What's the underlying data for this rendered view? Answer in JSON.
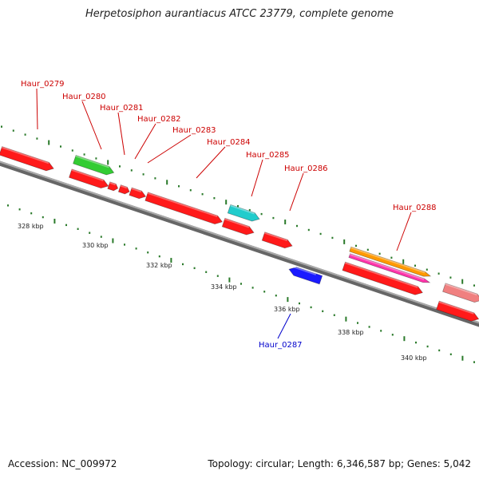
{
  "title": "Herpetosiphon aurantiacus ATCC 23779, complete genome",
  "footer": {
    "accession": "Accession: NC_009972",
    "summary": "Topology: circular; Length: 6,346,587 bp; Genes: 5,042"
  },
  "colors": {
    "backbone": "#888888",
    "tick": "#2a7a2a",
    "label_red": "#cc0000",
    "label_blue": "#0000cc"
  },
  "scale_labels": [
    "328 kbp",
    "330 kbp",
    "332 kbp",
    "334 kbp",
    "336 kbp",
    "338 kbp",
    "340 kbp"
  ],
  "genes": [
    {
      "label": "Haur_0279",
      "color": "#ff1a1a",
      "strand": "+",
      "labeled": true
    },
    {
      "label": "Haur_0280",
      "color": "#33cc33",
      "strand": "+",
      "labeled": true
    },
    {
      "label": "",
      "color": "#ff1a1a",
      "strand": "+",
      "labeled": false
    },
    {
      "label": "Haur_0281",
      "color": "#ff1a1a",
      "strand": "+",
      "labeled": true
    },
    {
      "label": "Haur_0282",
      "color": "#ff1a1a",
      "strand": "+",
      "labeled": true
    },
    {
      "label": "Haur_0283",
      "color": "#ff1a1a",
      "strand": "+",
      "labeled": true
    },
    {
      "label": "Haur_0284",
      "color": "#ff1a1a",
      "strand": "+",
      "labeled": true
    },
    {
      "label": "Haur_0285",
      "color": "#22cccc",
      "strand": "+",
      "labeled": true
    },
    {
      "label": "",
      "color": "#ff1a1a",
      "strand": "+",
      "labeled": false
    },
    {
      "label": "Haur_0286",
      "color": "#ff1a1a",
      "strand": "+",
      "labeled": true
    },
    {
      "label": "Haur_0287",
      "color": "#1a1aff",
      "strand": "-",
      "labeled": true
    },
    {
      "label": "",
      "color": "#ff1a1a",
      "strand": "+",
      "labeled": false
    },
    {
      "label": "",
      "color": "#ff33aa",
      "strand": "+",
      "labeled": false
    },
    {
      "label": "Haur_0288",
      "color": "#ff9900",
      "strand": "+",
      "labeled": true
    },
    {
      "label": "",
      "color": "#ff1a1a",
      "strand": "+",
      "labeled": false
    },
    {
      "label": "",
      "color": "#f08080",
      "strand": "+",
      "labeled": false
    }
  ]
}
